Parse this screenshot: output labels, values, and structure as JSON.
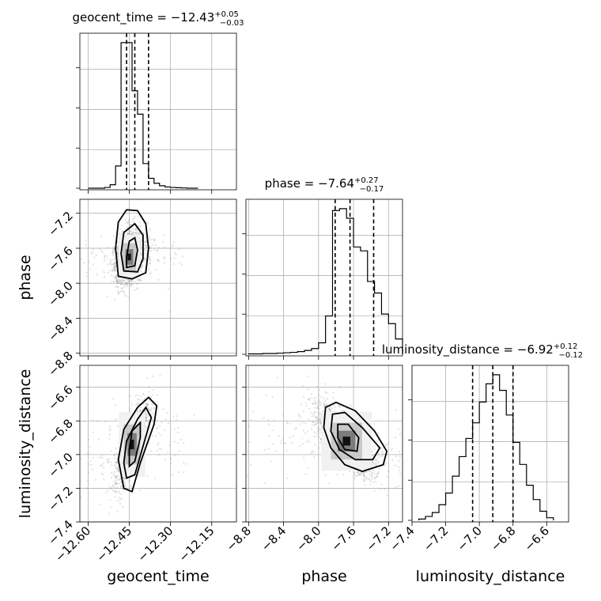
{
  "chart_data": {
    "type": "corner",
    "parameters": [
      "geocent_time",
      "phase",
      "luminosity_distance"
    ],
    "titles": [
      {
        "param": "geocent_time",
        "prefix": "geocent_time = ",
        "median": "−12.43",
        "plus": "+0.05",
        "minus": "−0.03"
      },
      {
        "param": "phase",
        "prefix": "phase = ",
        "median": "−7.64",
        "plus": "+0.27",
        "minus": "−0.17"
      },
      {
        "param": "luminosity_distance",
        "prefix": "luminosity_distance = ",
        "median": "−6.92",
        "plus": "+0.12",
        "minus": "−0.12"
      }
    ],
    "ranges": {
      "geocent_time": [
        -12.63,
        -12.06
      ],
      "phase": [
        -8.83,
        -7.04
      ],
      "luminosity_distance": [
        -7.4,
        -6.47
      ]
    },
    "ticks": {
      "geocent_time": [
        -12.6,
        -12.45,
        -12.3,
        -12.15
      ],
      "geocent_time_labels": [
        "−12.60",
        "−12.45",
        "−12.30",
        "−12.15"
      ],
      "phase": [
        -8.8,
        -8.4,
        -8.0,
        -7.6,
        -7.2
      ],
      "phase_labels": [
        "−8.8",
        "−8.4",
        "−8.0",
        "−7.6",
        "−7.2"
      ],
      "luminosity_distance": [
        -7.4,
        -7.2,
        -7.0,
        -6.8,
        -6.6
      ],
      "luminosity_distance_labels": [
        "−7.4",
        "−7.2",
        "−7.0",
        "−6.8",
        "−6.6"
      ]
    },
    "histograms": {
      "geocent_time": {
        "edges": [
          -12.6,
          -12.58,
          -12.56,
          -12.54,
          -12.52,
          -12.5,
          -12.48,
          -12.46,
          -12.44,
          -12.42,
          -12.4,
          -12.38,
          -12.36,
          -12.34,
          -12.32,
          -12.3,
          -12.28,
          -12.26,
          -12.24,
          -12.22,
          -12.2
        ],
        "counts": [
          0,
          0,
          0,
          3,
          14,
          90,
          590,
          590,
          395,
          300,
          100,
          40,
          20,
          10,
          5,
          3,
          2,
          1,
          0,
          0
        ],
        "quantiles": [
          -12.46,
          -12.43,
          -12.38
        ]
      },
      "phase": {
        "edges": [
          -8.8,
          -8.72,
          -8.64,
          -8.56,
          -8.48,
          -8.4,
          -8.32,
          -8.24,
          -8.16,
          -8.08,
          -8.0,
          -7.92,
          -7.84,
          -7.76,
          -7.68,
          -7.6,
          -7.52,
          -7.44,
          -7.36,
          -7.28,
          -7.2,
          -7.12,
          -7.04
        ],
        "counts": [
          1,
          1,
          2,
          2,
          3,
          4,
          5,
          7,
          10,
          15,
          30,
          100,
          375,
          380,
          355,
          280,
          270,
          190,
          160,
          105,
          80,
          40
        ],
        "quantiles": [
          -7.81,
          -7.64,
          -7.37
        ]
      },
      "luminosity_distance": {
        "edges": [
          -7.36,
          -7.32,
          -7.28,
          -7.24,
          -7.2,
          -7.16,
          -7.12,
          -7.08,
          -7.04,
          -7.0,
          -6.96,
          -6.92,
          -6.88,
          -6.84,
          -6.8,
          -6.76,
          -6.72,
          -6.68,
          -6.64,
          -6.6,
          -6.56
        ],
        "counts": [
          1,
          3,
          6,
          12,
          21,
          34,
          49,
          63,
          75,
          91,
          105,
          112,
          100,
          81,
          60,
          43,
          27,
          16,
          7,
          2
        ],
        "quantiles": [
          -7.04,
          -6.92,
          -6.8
        ]
      }
    },
    "density_2d": [
      {
        "x": "geocent_time",
        "y": "phase",
        "center": [
          -12.45,
          -7.7
        ],
        "sd": [
          0.025,
          0.16
        ],
        "rho": 0.25,
        "tail_x": 0.1,
        "contours": [
          [
            [
              -12.49,
              -7.92
            ],
            [
              -12.44,
              -7.95
            ],
            [
              -12.39,
              -7.88
            ],
            [
              -12.38,
              -7.6
            ],
            [
              -12.39,
              -7.32
            ],
            [
              -12.42,
              -7.17
            ],
            [
              -12.46,
              -7.16
            ],
            [
              -12.49,
              -7.3
            ],
            [
              -12.5,
              -7.6
            ],
            [
              -12.49,
              -7.92
            ]
          ],
          [
            [
              -12.47,
              -7.86
            ],
            [
              -12.42,
              -7.87
            ],
            [
              -12.4,
              -7.72
            ],
            [
              -12.4,
              -7.45
            ],
            [
              -12.43,
              -7.32
            ],
            [
              -12.47,
              -7.42
            ],
            [
              -12.48,
              -7.66
            ],
            [
              -12.47,
              -7.86
            ]
          ],
          [
            [
              -12.46,
              -7.82
            ],
            [
              -12.43,
              -7.8
            ],
            [
              -12.42,
              -7.62
            ],
            [
              -12.43,
              -7.48
            ],
            [
              -12.45,
              -7.52
            ],
            [
              -12.46,
              -7.7
            ],
            [
              -12.46,
              -7.82
            ]
          ]
        ]
      },
      {
        "x": "geocent_time",
        "y": "luminosity_distance",
        "center": [
          -12.44,
          -6.94
        ],
        "sd": [
          0.03,
          0.12
        ],
        "rho": 0.72,
        "tail_x": 0.1,
        "contours": [
          [
            [
              -12.47,
              -7.2
            ],
            [
              -12.44,
              -7.22
            ],
            [
              -12.41,
              -7.05
            ],
            [
              -12.36,
              -6.82
            ],
            [
              -12.35,
              -6.71
            ],
            [
              -12.38,
              -6.66
            ],
            [
              -12.42,
              -6.72
            ],
            [
              -12.47,
              -6.85
            ],
            [
              -12.49,
              -7.03
            ],
            [
              -12.47,
              -7.2
            ]
          ],
          [
            [
              -12.46,
              -7.14
            ],
            [
              -12.43,
              -7.12
            ],
            [
              -12.4,
              -6.95
            ],
            [
              -12.37,
              -6.78
            ],
            [
              -12.39,
              -6.72
            ],
            [
              -12.42,
              -6.79
            ],
            [
              -12.46,
              -6.92
            ],
            [
              -12.47,
              -7.05
            ],
            [
              -12.46,
              -7.14
            ]
          ],
          [
            [
              -12.45,
              -7.07
            ],
            [
              -12.43,
              -7.04
            ],
            [
              -12.41,
              -6.9
            ],
            [
              -12.41,
              -6.81
            ],
            [
              -12.44,
              -6.86
            ],
            [
              -12.45,
              -6.97
            ],
            [
              -12.45,
              -7.07
            ]
          ]
        ]
      },
      {
        "x": "phase",
        "y": "luminosity_distance",
        "center": [
          -7.68,
          -6.92
        ],
        "sd": [
          0.18,
          0.11
        ],
        "rho": -0.72,
        "tail_x": 0.6,
        "contours": [
          [
            [
              -7.92,
              -6.72
            ],
            [
              -7.8,
              -6.69
            ],
            [
              -7.58,
              -6.74
            ],
            [
              -7.36,
              -6.86
            ],
            [
              -7.22,
              -6.98
            ],
            [
              -7.26,
              -7.06
            ],
            [
              -7.5,
              -7.1
            ],
            [
              -7.7,
              -7.06
            ],
            [
              -7.86,
              -6.96
            ],
            [
              -7.94,
              -6.84
            ],
            [
              -7.92,
              -6.72
            ]
          ],
          [
            [
              -7.84,
              -6.76
            ],
            [
              -7.7,
              -6.75
            ],
            [
              -7.5,
              -6.84
            ],
            [
              -7.3,
              -6.96
            ],
            [
              -7.38,
              -7.03
            ],
            [
              -7.58,
              -7.03
            ],
            [
              -7.76,
              -6.97
            ],
            [
              -7.86,
              -6.86
            ],
            [
              -7.84,
              -6.76
            ]
          ],
          [
            [
              -7.78,
              -6.82
            ],
            [
              -7.66,
              -6.82
            ],
            [
              -7.54,
              -6.9
            ],
            [
              -7.56,
              -6.98
            ],
            [
              -7.7,
              -6.97
            ],
            [
              -7.78,
              -6.9
            ],
            [
              -7.78,
              -6.82
            ]
          ]
        ]
      }
    ],
    "scatter_points": 1500,
    "grid": true,
    "colors": {
      "line": "#000000",
      "grid": "#b0b0b0",
      "points": "#6d6d6d"
    }
  }
}
